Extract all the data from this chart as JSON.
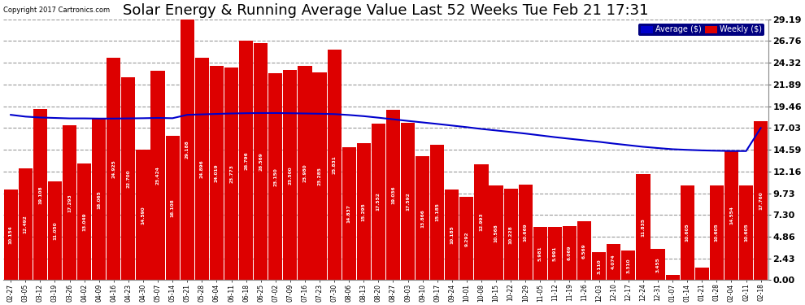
{
  "title": "Solar Energy & Running Average Value Last 52 Weeks Tue Feb 21 17:31",
  "copyright": "Copyright 2017 Cartronics.com",
  "categories": [
    "02-27",
    "03-05",
    "03-12",
    "03-19",
    "03-26",
    "04-02",
    "04-09",
    "04-16",
    "04-23",
    "04-30",
    "05-07",
    "05-14",
    "05-21",
    "05-28",
    "06-04",
    "06-11",
    "06-18",
    "06-25",
    "07-02",
    "07-09",
    "07-16",
    "07-23",
    "07-30",
    "08-06",
    "08-13",
    "08-20",
    "08-27",
    "09-03",
    "09-10",
    "09-17",
    "09-24",
    "10-01",
    "10-08",
    "10-15",
    "10-22",
    "10-29",
    "11-05",
    "11-12",
    "11-19",
    "11-26",
    "12-03",
    "12-10",
    "12-17",
    "12-24",
    "12-31",
    "01-07",
    "01-14",
    "01-21",
    "01-28",
    "02-04",
    "02-11",
    "02-18"
  ],
  "weekly_values": [
    10.154,
    12.492,
    19.108,
    11.05,
    17.293,
    13.049,
    18.065,
    24.925,
    22.7,
    14.59,
    23.424,
    16.108,
    29.188,
    24.896,
    24.019,
    23.773,
    26.796,
    26.569,
    23.15,
    23.5,
    23.98,
    23.285,
    25.831,
    14.837,
    15.295,
    17.552,
    19.036,
    17.592,
    13.866,
    15.185,
    10.185,
    9.292,
    12.993,
    10.568,
    10.228,
    10.669,
    5.981,
    5.991,
    6.069,
    6.569,
    3.11,
    4.074,
    3.31,
    11.835,
    3.455,
    0.554,
    10.605,
    1.376,
    10.605,
    14.554,
    10.605,
    17.76
  ],
  "average_values": [
    18.5,
    18.3,
    18.2,
    18.15,
    18.1,
    18.1,
    18.08,
    18.08,
    18.1,
    18.12,
    18.15,
    18.12,
    18.5,
    18.55,
    18.6,
    18.65,
    18.68,
    18.7,
    18.7,
    18.68,
    18.65,
    18.62,
    18.58,
    18.48,
    18.35,
    18.18,
    18.0,
    17.82,
    17.65,
    17.48,
    17.3,
    17.12,
    16.92,
    16.75,
    16.58,
    16.4,
    16.2,
    16.0,
    15.82,
    15.65,
    15.48,
    15.28,
    15.1,
    14.92,
    14.78,
    14.65,
    14.58,
    14.52,
    14.48,
    14.45,
    14.44,
    17.03
  ],
  "bar_color": "#dd0000",
  "line_color": "#0000cc",
  "background_color": "#ffffff",
  "plot_background": "#ffffff",
  "grid_color": "#999999",
  "yticks": [
    0.0,
    2.43,
    4.86,
    7.3,
    9.73,
    12.16,
    14.59,
    17.03,
    19.46,
    21.89,
    24.32,
    26.76,
    29.19
  ],
  "title_fontsize": 13,
  "legend_avg_label": "Average ($)",
  "legend_weekly_label": "Weekly ($)"
}
